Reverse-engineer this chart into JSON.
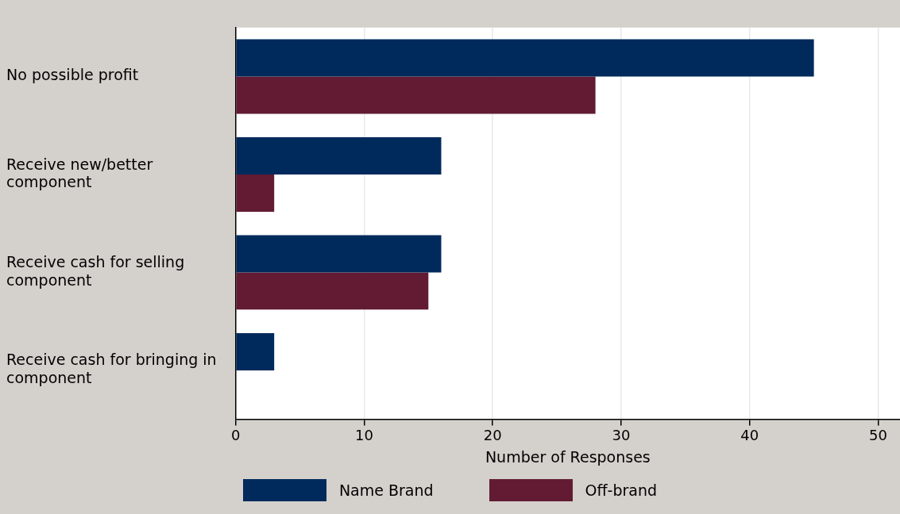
{
  "chart_data": {
    "type": "bar",
    "orientation": "horizontal",
    "xlabel": "Number of Responses",
    "categories": [
      "No possible profit",
      "Receive new/better component",
      "Receive cash for selling component",
      "Receive cash for bringing in component"
    ],
    "series": [
      {
        "name": "Name Brand",
        "color": "#002a5c",
        "values": [
          45,
          16,
          16,
          3
        ]
      },
      {
        "name": "Off-brand",
        "color": "#621b33",
        "values": [
          28,
          3,
          15,
          0
        ]
      }
    ],
    "xlim": [
      0,
      51.7
    ],
    "xticks": [
      0,
      10,
      20,
      30,
      40,
      50
    ],
    "grid": "x",
    "legend": "bottom"
  }
}
